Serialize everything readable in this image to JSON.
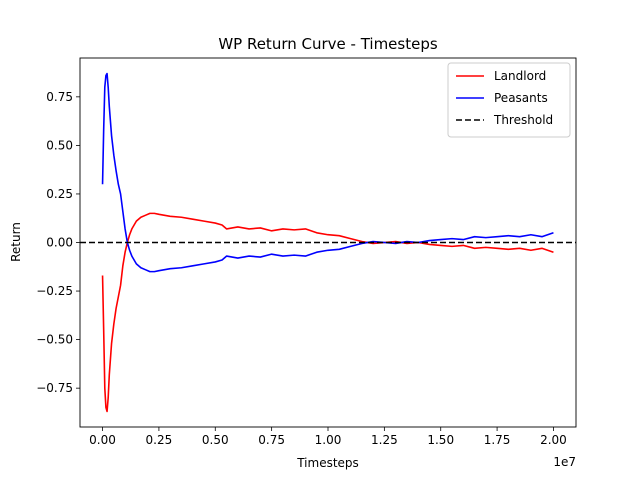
{
  "chart_data": {
    "type": "line",
    "title": "WP Return Curve - Timesteps",
    "xlabel": "Timesteps",
    "ylabel": "Return",
    "x_offset_label": "1e7",
    "x_ticks": [
      0,
      2500000,
      5000000,
      7500000,
      10000000,
      12500000,
      15000000,
      17500000,
      20000000
    ],
    "x_tick_labels": [
      "0.00",
      "0.25",
      "0.50",
      "0.75",
      "1.00",
      "1.25",
      "1.50",
      "1.75",
      "2.00"
    ],
    "y_ticks": [
      -0.75,
      -0.5,
      -0.25,
      0.0,
      0.25,
      0.5,
      0.75
    ],
    "y_tick_labels": [
      "−0.75",
      "−0.50",
      "−0.25",
      "0.00",
      "0.25",
      "0.50",
      "0.75"
    ],
    "xlim": [
      -1000000,
      21000000
    ],
    "ylim": [
      -0.95,
      0.95
    ],
    "grid": false,
    "legend_position": "upper right",
    "series": [
      {
        "name": "Landlord",
        "color": "#ff0000",
        "x": [
          0,
          50000,
          100000,
          150000,
          200000,
          250000,
          300000,
          400000,
          500000,
          600000,
          700000,
          800000,
          900000,
          1000000,
          1100000,
          1200000,
          1300000,
          1400000,
          1500000,
          1700000,
          1900000,
          2100000,
          2300000,
          2500000,
          3000000,
          3500000,
          4000000,
          4500000,
          5000000,
          5300000,
          5500000,
          6000000,
          6500000,
          7000000,
          7500000,
          8000000,
          8500000,
          9000000,
          9500000,
          10000000,
          10500000,
          11000000,
          11500000,
          12000000,
          12500000,
          13000000,
          13500000,
          14000000,
          14500000,
          15000000,
          15500000,
          16000000,
          16500000,
          17000000,
          17500000,
          18000000,
          18500000,
          19000000,
          19500000,
          20000000
        ],
        "y": [
          -0.17,
          -0.45,
          -0.75,
          -0.85,
          -0.87,
          -0.8,
          -0.68,
          -0.52,
          -0.42,
          -0.34,
          -0.28,
          -0.22,
          -0.12,
          -0.05,
          0.0,
          0.04,
          0.07,
          0.09,
          0.11,
          0.13,
          0.14,
          0.15,
          0.15,
          0.145,
          0.135,
          0.13,
          0.12,
          0.11,
          0.1,
          0.09,
          0.07,
          0.08,
          0.07,
          0.075,
          0.06,
          0.07,
          0.065,
          0.07,
          0.05,
          0.04,
          0.035,
          0.02,
          0.005,
          -0.005,
          0.0,
          0.005,
          -0.005,
          0.0,
          -0.01,
          -0.015,
          -0.02,
          -0.015,
          -0.03,
          -0.025,
          -0.03,
          -0.035,
          -0.03,
          -0.04,
          -0.03,
          -0.05
        ]
      },
      {
        "name": "Peasants",
        "color": "#0000ff",
        "x": [
          0,
          50000,
          100000,
          150000,
          200000,
          250000,
          300000,
          400000,
          500000,
          600000,
          700000,
          800000,
          900000,
          1000000,
          1100000,
          1200000,
          1300000,
          1400000,
          1500000,
          1700000,
          1900000,
          2100000,
          2300000,
          2500000,
          3000000,
          3500000,
          4000000,
          4500000,
          5000000,
          5300000,
          5500000,
          6000000,
          6500000,
          7000000,
          7500000,
          8000000,
          8500000,
          9000000,
          9500000,
          10000000,
          10500000,
          11000000,
          11500000,
          12000000,
          12500000,
          13000000,
          13500000,
          14000000,
          14500000,
          15000000,
          15500000,
          16000000,
          16500000,
          17000000,
          17500000,
          18000000,
          18500000,
          19000000,
          19500000,
          20000000
        ],
        "y": [
          0.3,
          0.58,
          0.8,
          0.86,
          0.87,
          0.8,
          0.7,
          0.55,
          0.45,
          0.37,
          0.3,
          0.25,
          0.16,
          0.07,
          0.0,
          -0.04,
          -0.07,
          -0.09,
          -0.11,
          -0.13,
          -0.14,
          -0.15,
          -0.15,
          -0.145,
          -0.135,
          -0.13,
          -0.12,
          -0.11,
          -0.1,
          -0.09,
          -0.07,
          -0.08,
          -0.07,
          -0.075,
          -0.06,
          -0.07,
          -0.065,
          -0.07,
          -0.05,
          -0.04,
          -0.035,
          -0.02,
          -0.005,
          0.005,
          0.0,
          -0.005,
          0.005,
          0.0,
          0.01,
          0.015,
          0.02,
          0.015,
          0.03,
          0.025,
          0.03,
          0.035,
          0.03,
          0.04,
          0.03,
          0.05
        ]
      }
    ],
    "hlines": [
      {
        "name": "Threshold",
        "y": 0.0,
        "color": "#000000",
        "style": "dashed"
      }
    ]
  }
}
